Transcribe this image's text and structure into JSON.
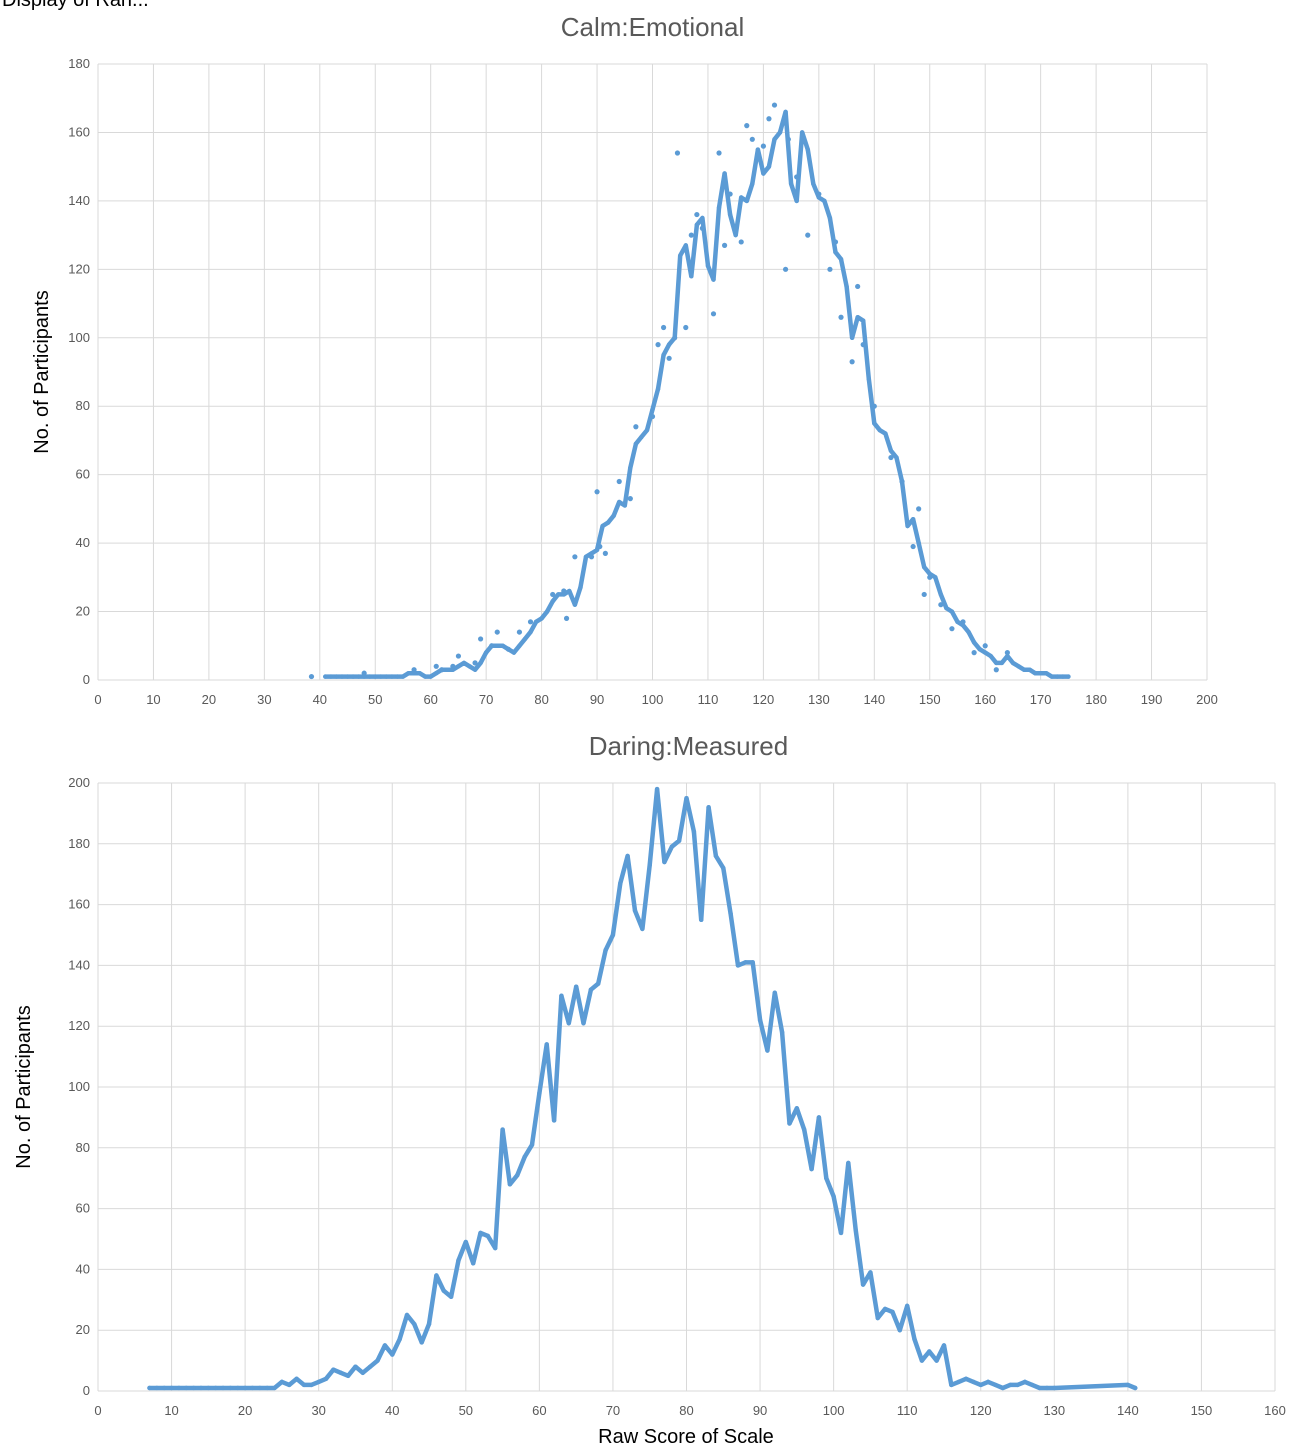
{
  "chart_data": [
    {
      "type": "line",
      "title": "Calm:Emotional",
      "xlabel": "",
      "ylabel": "No. of Participants",
      "xlim": [
        0,
        200
      ],
      "ylim": [
        0,
        180
      ],
      "xticks": [
        0,
        10,
        20,
        30,
        40,
        50,
        60,
        70,
        80,
        90,
        100,
        110,
        120,
        130,
        140,
        150,
        160,
        170,
        180,
        190,
        200
      ],
      "yticks": [
        0,
        20,
        40,
        60,
        80,
        100,
        120,
        140,
        160,
        180
      ],
      "grid": true,
      "legend": "none",
      "color": "#5b9bd5",
      "series": [
        {
          "x": [
            41,
            42,
            43,
            44,
            45,
            46,
            47,
            48,
            49,
            50,
            51,
            52,
            53,
            54,
            55,
            56,
            57,
            58,
            59,
            60,
            61,
            62,
            63,
            64,
            65,
            66,
            67,
            68,
            69,
            70,
            71,
            72,
            73,
            74,
            75,
            76,
            77,
            78,
            79,
            80,
            81,
            82,
            83,
            84,
            85,
            86,
            87,
            88,
            89,
            90,
            91,
            92,
            93,
            94,
            95,
            96,
            97,
            98,
            99,
            100,
            101,
            102,
            103,
            104,
            105,
            106,
            107,
            108,
            109,
            110,
            111,
            112,
            113,
            114,
            115,
            116,
            117,
            118,
            119,
            120,
            121,
            122,
            123,
            124,
            125,
            126,
            127,
            128,
            129,
            130,
            131,
            132,
            133,
            134,
            135,
            136,
            137,
            138,
            139,
            140,
            141,
            142,
            143,
            144,
            145,
            146,
            147,
            148,
            149,
            150,
            151,
            152,
            153,
            154,
            155,
            156,
            157,
            158,
            159,
            160,
            161,
            162,
            163,
            164,
            165,
            166,
            167,
            168,
            169,
            170,
            171,
            172,
            173,
            174,
            175
          ],
          "y": [
            1,
            1,
            1,
            1,
            1,
            1,
            1,
            1,
            1,
            1,
            1,
            1,
            1,
            1,
            1,
            2,
            2,
            2,
            1,
            1,
            2,
            3,
            3,
            3,
            4,
            5,
            4,
            3,
            5,
            8,
            10,
            10,
            10,
            9,
            8,
            10,
            12,
            14,
            17,
            18,
            20,
            23,
            25,
            25,
            26,
            22,
            27,
            36,
            37,
            38,
            45,
            46,
            48,
            52,
            51,
            62,
            69,
            71,
            73,
            79,
            85,
            95,
            98,
            100,
            124,
            127,
            118,
            133,
            135,
            121,
            117,
            138,
            148,
            136,
            130,
            141,
            140,
            145,
            155,
            148,
            150,
            158,
            160,
            166,
            145,
            140,
            160,
            155,
            145,
            141,
            140,
            135,
            125,
            123,
            115,
            100,
            106,
            105,
            88,
            75,
            73,
            72,
            67,
            65,
            58,
            45,
            47,
            40,
            33,
            31,
            30,
            25,
            21,
            20,
            17,
            16,
            14,
            11,
            9,
            8,
            7,
            5,
            5,
            7,
            5,
            4,
            3,
            3,
            2,
            2,
            2,
            1,
            1,
            1,
            1
          ]
        }
      ],
      "scatter": {
        "x": [
          38.5,
          48,
          57,
          61,
          62,
          64,
          65,
          68,
          69,
          71,
          72,
          74,
          76,
          78,
          82,
          84,
          84.5,
          86,
          89,
          90,
          90.5,
          91.5,
          94,
          96,
          97,
          100,
          101,
          102,
          103,
          104,
          104.5,
          106,
          107,
          108,
          109,
          111,
          112,
          113,
          114,
          116,
          117,
          118,
          120,
          121,
          122,
          124,
          124.5,
          126,
          128,
          130,
          132,
          133,
          134,
          136,
          137,
          138,
          140,
          143,
          145,
          147,
          148,
          149,
          150,
          152,
          154,
          156,
          158,
          160,
          162,
          164
        ],
        "y": [
          1,
          2,
          3,
          4,
          3,
          4,
          7,
          5,
          12,
          10,
          14,
          9,
          14,
          17,
          25,
          26,
          18,
          36,
          36,
          55,
          39,
          37,
          58,
          53,
          74,
          77,
          98,
          103,
          94,
          100,
          154,
          103,
          130,
          136,
          132,
          107,
          154,
          127,
          142,
          128,
          162,
          158,
          156,
          164,
          168,
          120,
          158,
          147,
          130,
          142,
          120,
          128,
          106,
          93,
          115,
          98,
          80,
          65,
          58,
          39,
          50,
          25,
          30,
          22,
          15,
          17,
          8,
          10,
          3,
          8
        ]
      }
    },
    {
      "type": "line",
      "title": "Daring:Measured",
      "xlabel": "Raw Score of Scale",
      "ylabel": "No. of Participants",
      "xlim": [
        0,
        160
      ],
      "ylim": [
        0,
        200
      ],
      "xticks": [
        0,
        10,
        20,
        30,
        40,
        50,
        60,
        70,
        80,
        90,
        100,
        110,
        120,
        130,
        140,
        150,
        160
      ],
      "yticks": [
        0,
        20,
        40,
        60,
        80,
        100,
        120,
        140,
        160,
        180,
        200
      ],
      "grid": true,
      "legend": "none",
      "color": "#5b9bd5",
      "series": [
        {
          "x": [
            7,
            8,
            9,
            10,
            11,
            12,
            13,
            14,
            15,
            16,
            17,
            18,
            19,
            20,
            21,
            22,
            23,
            24,
            25,
            26,
            27,
            28,
            29,
            30,
            31,
            32,
            33,
            34,
            35,
            36,
            37,
            38,
            39,
            40,
            41,
            42,
            43,
            44,
            45,
            46,
            47,
            48,
            49,
            50,
            51,
            52,
            53,
            54,
            55,
            56,
            57,
            58,
            59,
            60,
            61,
            62,
            63,
            64,
            65,
            66,
            67,
            68,
            69,
            70,
            71,
            72,
            73,
            74,
            75,
            76,
            77,
            78,
            79,
            80,
            81,
            82,
            83,
            84,
            85,
            86,
            87,
            88,
            89,
            90,
            91,
            92,
            93,
            94,
            95,
            96,
            97,
            98,
            99,
            100,
            101,
            102,
            103,
            104,
            105,
            106,
            107,
            108,
            109,
            110,
            111,
            112,
            113,
            114,
            115,
            116,
            117,
            118,
            119,
            120,
            121,
            122,
            123,
            124,
            125,
            126,
            127,
            128,
            129,
            130,
            140,
            141
          ],
          "y": [
            1,
            1,
            1,
            1,
            1,
            1,
            1,
            1,
            1,
            1,
            1,
            1,
            1,
            1,
            1,
            1,
            1,
            1,
            3,
            2,
            4,
            2,
            2,
            3,
            4,
            7,
            6,
            5,
            8,
            6,
            8,
            10,
            15,
            12,
            17,
            25,
            22,
            16,
            22,
            38,
            33,
            31,
            43,
            49,
            42,
            52,
            51,
            47,
            86,
            68,
            71,
            77,
            81,
            98,
            114,
            89,
            130,
            121,
            133,
            121,
            132,
            134,
            145,
            150,
            167,
            176,
            158,
            152,
            173,
            198,
            174,
            179,
            181,
            195,
            184,
            155,
            192,
            176,
            172,
            157,
            140,
            141,
            141,
            122,
            112,
            131,
            118,
            88,
            93,
            86,
            73,
            90,
            70,
            64,
            52,
            75,
            53,
            35,
            39,
            24,
            27,
            26,
            20,
            28,
            17,
            10,
            13,
            10,
            15,
            2,
            3,
            4,
            3,
            2,
            3,
            2,
            1,
            2,
            2,
            3,
            2,
            1,
            1,
            1,
            2,
            1
          ]
        }
      ]
    }
  ],
  "page": {
    "top_cut_text": "Display of Ran..."
  }
}
